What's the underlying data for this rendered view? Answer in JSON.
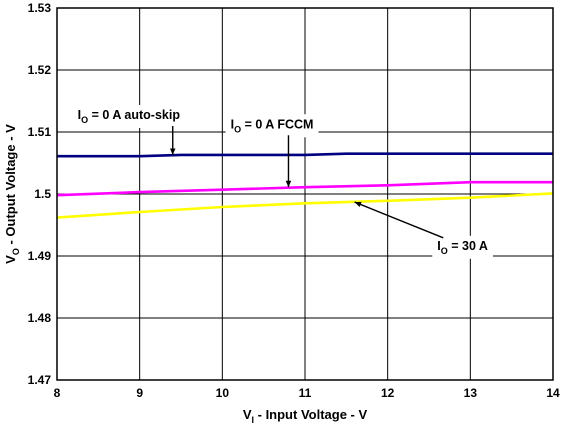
{
  "chart_data": {
    "type": "line",
    "xlabel": {
      "main": "V",
      "sub": "I",
      "rest": " - Input Voltage - V"
    },
    "ylabel": {
      "main": "V",
      "sub": "O",
      "rest": " - Output Voltage - V"
    },
    "xlim": [
      8,
      14
    ],
    "ylim": [
      1.47,
      1.53
    ],
    "x_ticks": [
      "8",
      "9",
      "10",
      "11",
      "12",
      "13",
      "14"
    ],
    "y_ticks": [
      "1.53",
      "1.52",
      "1.51",
      "1.5",
      "1.49",
      "1.48",
      "1.47"
    ],
    "grid": true,
    "series": [
      {
        "name": {
          "main": "I",
          "sub": "O",
          "rest": " = 0 A auto-skip"
        },
        "color": "#000080",
        "x": [
          8,
          9,
          9.5,
          10,
          11,
          11.5,
          12,
          13,
          14
        ],
        "y": [
          1.5061,
          1.5061,
          1.5063,
          1.5063,
          1.5063,
          1.5065,
          1.5065,
          1.5065,
          1.5065
        ]
      },
      {
        "name": {
          "main": "I",
          "sub": "O",
          "rest": " = 0 A FCCM"
        },
        "color": "#ff00ff",
        "x": [
          8,
          9,
          10,
          11,
          12,
          13,
          14
        ],
        "y": [
          1.4998,
          1.5003,
          1.5007,
          1.5011,
          1.5014,
          1.5019,
          1.5019
        ]
      },
      {
        "name": {
          "main": "I",
          "sub": "O",
          "rest": " = 30 A"
        },
        "color": "#ffff00",
        "x": [
          8,
          9,
          10,
          11,
          12,
          13,
          14
        ],
        "y": [
          1.4962,
          1.4971,
          1.4979,
          1.4985,
          1.4989,
          1.4994,
          1.5001
        ]
      }
    ],
    "annotations": [
      {
        "series": 0,
        "label_x": 8.25,
        "label_y": 1.5121,
        "target_x": 9.4,
        "target_y": 1.5063
      },
      {
        "series": 1,
        "label_x": 10.1,
        "label_y": 1.5106,
        "target_x": 10.8,
        "target_y": 1.5011
      },
      {
        "series": 2,
        "label_x": 12.6,
        "label_y": 1.491,
        "target_x": 11.6,
        "target_y": 1.4987
      }
    ]
  }
}
